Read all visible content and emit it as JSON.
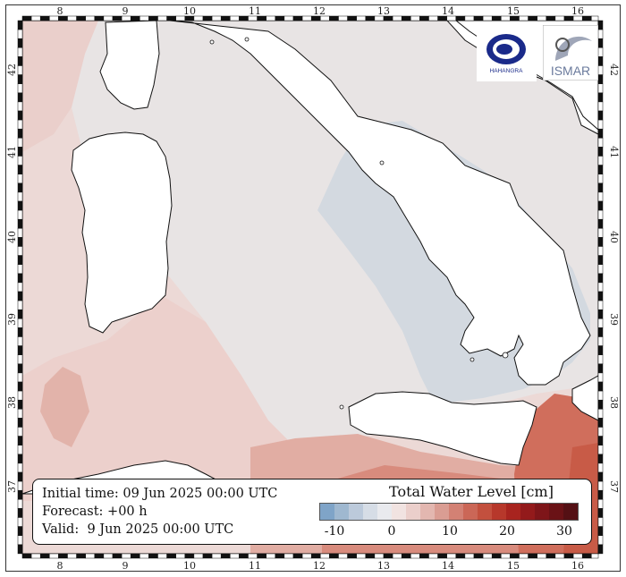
{
  "map": {
    "lon_labels": [
      "8",
      "9",
      "10",
      "11",
      "12",
      "13",
      "14",
      "15",
      "16"
    ],
    "lat_labels": [
      "42",
      "41",
      "40",
      "39",
      "38",
      "37"
    ],
    "colors": {
      "sea_light": "#e8e4e4",
      "sea_pink": "#efd6d3",
      "sea_red": "#df9e8e",
      "sea_deep": "#c75a44",
      "sea_blue": "#d2d8de",
      "land": "#ffffff",
      "coast": "#111111"
    }
  },
  "info": {
    "initial_time": "Initial time: 09 Jun 2025 00:00 UTC",
    "forecast": "Forecast: +00 h",
    "valid": "Valid:  9 Jun 2025 00:00 UTC"
  },
  "colorbar": {
    "title": "Total Water Level [cm]",
    "tick_labels": [
      "-10",
      "0",
      "10",
      "20",
      "30"
    ],
    "colors": [
      "#7fa4c8",
      "#9fb8d0",
      "#bccadb",
      "#d6dde6",
      "#e9eaee",
      "#f1e3e1",
      "#ebcfcb",
      "#e3b7b0",
      "#da9d93",
      "#d38174",
      "#cb6757",
      "#c3503e",
      "#b7382b",
      "#a8241f",
      "#931a1b",
      "#7e1519",
      "#6a1216",
      "#541014"
    ]
  },
  "logos": {
    "hb_name": "HAHANGRA",
    "ismar_name": "ISMAR"
  }
}
